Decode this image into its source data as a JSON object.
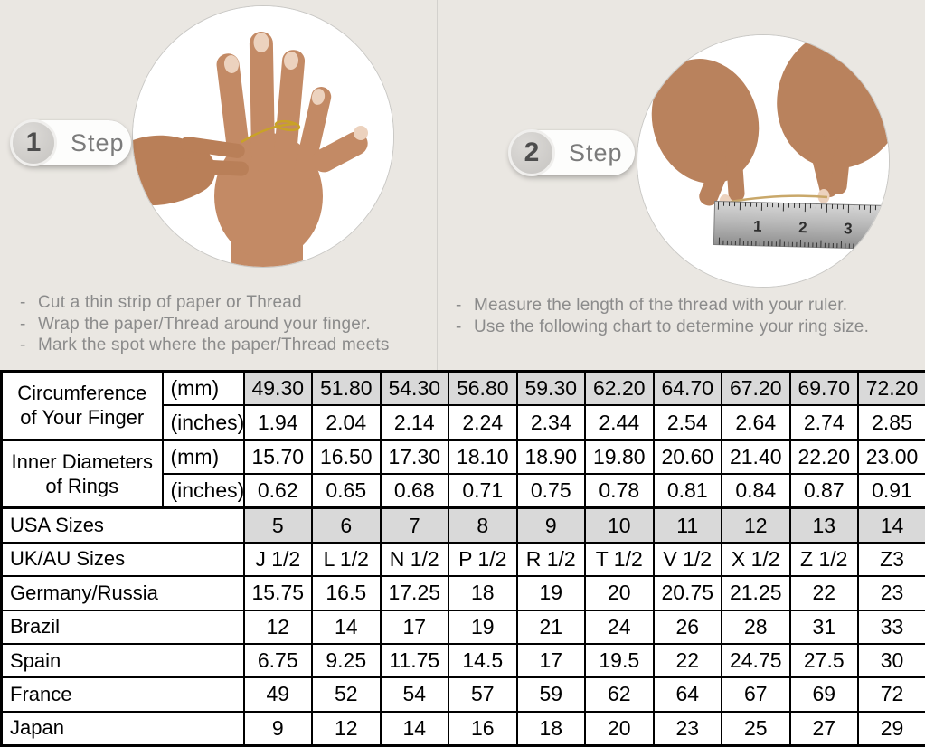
{
  "colors": {
    "top_background": "#eae7e2",
    "highlight_cell": "#d9d9d9",
    "instruction_text": "#8b8b8b",
    "thread_gold": "#c9a227"
  },
  "steps": [
    {
      "number": "1",
      "label": "Step",
      "instructions": [
        "Cut a thin strip of paper or Thread",
        "Wrap the paper/Thread around your finger.",
        "Mark the spot where the paper/Thread meets"
      ]
    },
    {
      "number": "2",
      "label": "Step",
      "instructions": [
        "Measure the length of the thread with your ruler.",
        "Use the following chart to determine your ring size."
      ],
      "ruler_numbers": [
        "1",
        "2",
        "3"
      ]
    }
  ],
  "table": {
    "columns": 10,
    "rows": [
      {
        "label_lines": [
          "Circumference",
          "of Your Finger"
        ],
        "label_rowspan": 2,
        "unit": "(mm)",
        "highlight": true,
        "values": [
          "49.30",
          "51.80",
          "54.30",
          "56.80",
          "59.30",
          "62.20",
          "64.70",
          "67.20",
          "69.70",
          "72.20"
        ]
      },
      {
        "unit": "(inches)",
        "values": [
          "1.94",
          "2.04",
          "2.14",
          "2.24",
          "2.34",
          "2.44",
          "2.54",
          "2.64",
          "2.74",
          "2.85"
        ]
      },
      {
        "label_lines": [
          "Inner Diameters",
          "of Rings"
        ],
        "label_rowspan": 2,
        "unit": "(mm)",
        "sep": true,
        "values": [
          "15.70",
          "16.50",
          "17.30",
          "18.10",
          "18.90",
          "19.80",
          "20.60",
          "21.40",
          "22.20",
          "23.00"
        ]
      },
      {
        "unit": "(inches)",
        "values": [
          "0.62",
          "0.65",
          "0.68",
          "0.71",
          "0.75",
          "0.78",
          "0.81",
          "0.84",
          "0.87",
          "0.91"
        ]
      },
      {
        "label": "USA Sizes",
        "highlight": true,
        "sep": true,
        "values": [
          "5",
          "6",
          "7",
          "8",
          "9",
          "10",
          "11",
          "12",
          "13",
          "14"
        ]
      },
      {
        "label": "UK/AU Sizes",
        "values": [
          "J 1/2",
          "L 1/2",
          "N 1/2",
          "P 1/2",
          "R 1/2",
          "T 1/2",
          "V 1/2",
          "X 1/2",
          "Z 1/2",
          "Z3"
        ]
      },
      {
        "label": "Germany/Russia",
        "values": [
          "15.75",
          "16.5",
          "17.25",
          "18",
          "19",
          "20",
          "20.75",
          "21.25",
          "22",
          "23"
        ]
      },
      {
        "label": "Brazil",
        "values": [
          "12",
          "14",
          "17",
          "19",
          "21",
          "24",
          "26",
          "28",
          "31",
          "33"
        ]
      },
      {
        "label": "Spain",
        "values": [
          "6.75",
          "9.25",
          "11.75",
          "14.5",
          "17",
          "19.5",
          "22",
          "24.75",
          "27.5",
          "30"
        ]
      },
      {
        "label": "France",
        "values": [
          "49",
          "52",
          "54",
          "57",
          "59",
          "62",
          "64",
          "67",
          "69",
          "72"
        ]
      },
      {
        "label": "Japan",
        "values": [
          "9",
          "12",
          "14",
          "16",
          "18",
          "20",
          "23",
          "25",
          "27",
          "29"
        ]
      }
    ]
  }
}
